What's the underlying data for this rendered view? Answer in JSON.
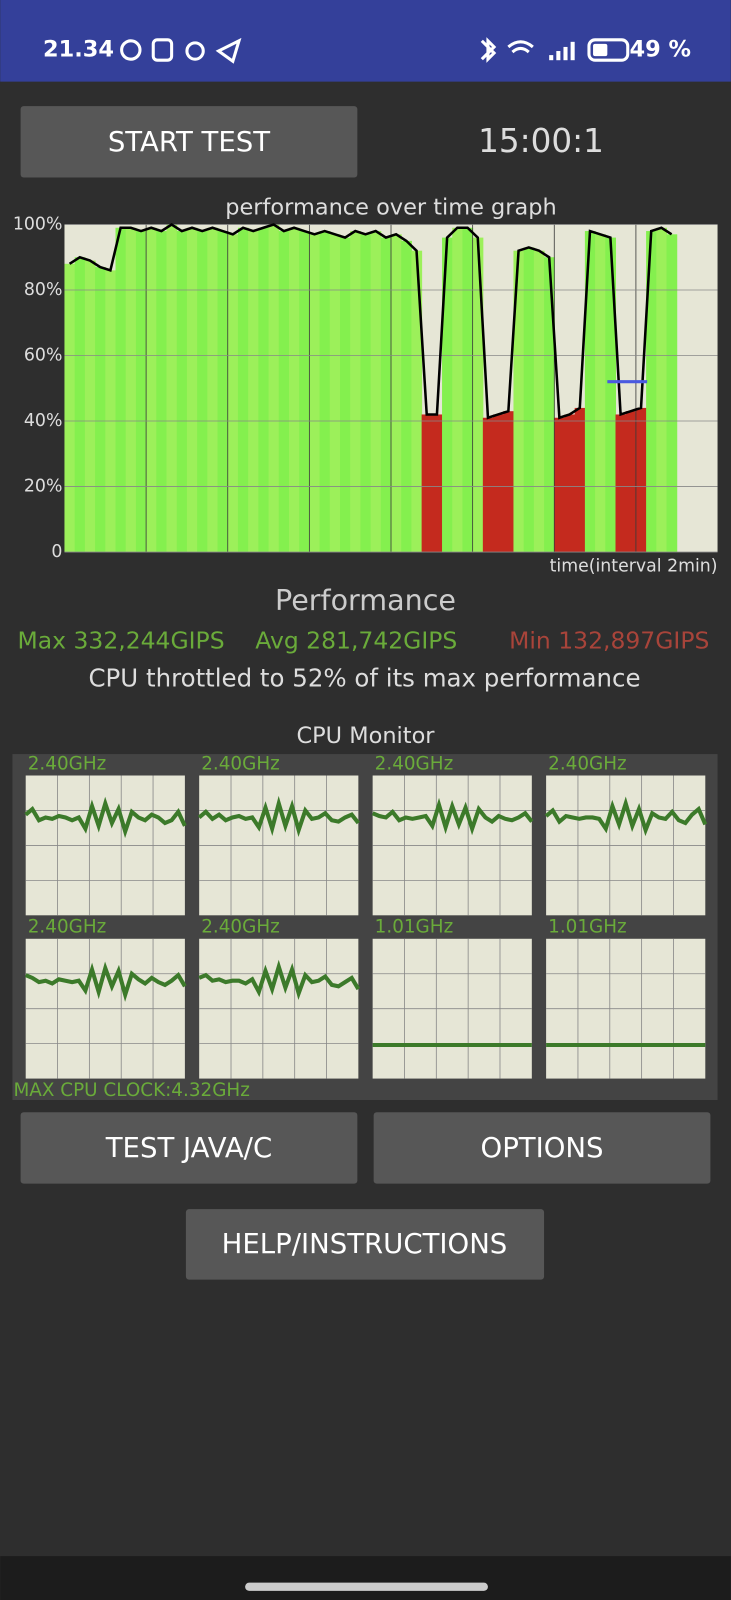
{
  "status_bar": {
    "time": "21.34",
    "battery": "49 %"
  },
  "start_button": "START TEST",
  "timer": "15:00:1",
  "performance_graph": {
    "type": "area",
    "title": "performance over time graph",
    "x_label": "time(interval 2min)",
    "ylim": [
      0,
      100
    ],
    "yticks": [
      {
        "value": 100,
        "label": "100%"
      },
      {
        "value": 80,
        "label": "80%"
      },
      {
        "value": 60,
        "label": "60%"
      },
      {
        "value": 40,
        "label": "40%"
      },
      {
        "value": 20,
        "label": "20%"
      },
      0
    ],
    "values": [
      88,
      90,
      89,
      87,
      86,
      99,
      99,
      98,
      99,
      98,
      100,
      98,
      99,
      98,
      99,
      98,
      97,
      99,
      98,
      99,
      100,
      98,
      99,
      98,
      97,
      98,
      97,
      96,
      98,
      97,
      98,
      96,
      97,
      95,
      92,
      42,
      42,
      96,
      99,
      99,
      96,
      41,
      42,
      43,
      92,
      93,
      92,
      90,
      41,
      42,
      44,
      98,
      97,
      96,
      42,
      43,
      44,
      98,
      99,
      97
    ],
    "marker_value": 52
  },
  "performance": {
    "title": "Performance",
    "max": "Max 332,244GIPS",
    "avg": "Avg 281,742GIPS",
    "min": "Min 132,897GIPS",
    "summary": "CPU throttled to 52% of its max performance"
  },
  "cpu_monitor": {
    "title": "CPU Monitor",
    "cores": [
      {
        "label": "2.40GHz",
        "values": [
          72,
          76,
          68,
          70,
          69,
          71,
          70,
          68,
          70,
          62,
          78,
          64,
          80,
          66,
          76,
          60,
          74,
          70,
          68,
          72,
          70,
          66,
          68,
          74,
          64
        ]
      },
      {
        "label": "2.40GHz",
        "values": [
          70,
          74,
          69,
          72,
          68,
          70,
          71,
          69,
          70,
          63,
          77,
          62,
          80,
          64,
          78,
          61,
          75,
          69,
          70,
          73,
          68,
          67,
          70,
          72,
          66
        ]
      },
      {
        "label": "2.40GHz",
        "values": [
          73,
          71,
          70,
          74,
          68,
          70,
          69,
          70,
          71,
          64,
          79,
          63,
          78,
          65,
          77,
          62,
          76,
          70,
          67,
          71,
          69,
          68,
          70,
          73,
          67
        ]
      },
      {
        "label": "2.40GHz",
        "values": [
          71,
          75,
          67,
          71,
          70,
          69,
          70,
          70,
          69,
          62,
          78,
          65,
          80,
          64,
          76,
          61,
          73,
          70,
          69,
          74,
          68,
          66,
          72,
          76,
          65
        ]
      },
      {
        "label": "2.40GHz",
        "values": [
          74,
          72,
          69,
          70,
          68,
          71,
          70,
          69,
          70,
          63,
          78,
          62,
          79,
          66,
          77,
          60,
          75,
          71,
          68,
          72,
          69,
          67,
          70,
          74,
          66
        ]
      },
      {
        "label": "2.40GHz",
        "values": [
          72,
          74,
          70,
          71,
          69,
          70,
          70,
          68,
          71,
          62,
          77,
          64,
          80,
          65,
          78,
          61,
          74,
          69,
          70,
          73,
          67,
          66,
          69,
          72,
          64
        ]
      },
      {
        "label": "1.01GHz",
        "values": [
          24,
          24,
          24,
          24,
          24,
          24,
          24,
          24,
          24,
          24,
          24,
          24,
          24,
          24,
          24,
          24,
          24,
          24,
          24,
          24,
          24,
          24,
          24,
          24,
          24
        ]
      },
      {
        "label": "1.01GHz",
        "values": [
          24,
          24,
          24,
          24,
          24,
          24,
          24,
          24,
          24,
          24,
          24,
          24,
          24,
          24,
          24,
          24,
          24,
          24,
          24,
          24,
          24,
          24,
          24,
          24,
          24
        ]
      }
    ],
    "ylim": [
      0,
      100
    ],
    "max_clock": "MAX CPU CLOCK:4.32GHz"
  },
  "buttons": [
    "TEST JAVA/C",
    "OPTIONS",
    "HELP/INSTRUCTIONS"
  ]
}
